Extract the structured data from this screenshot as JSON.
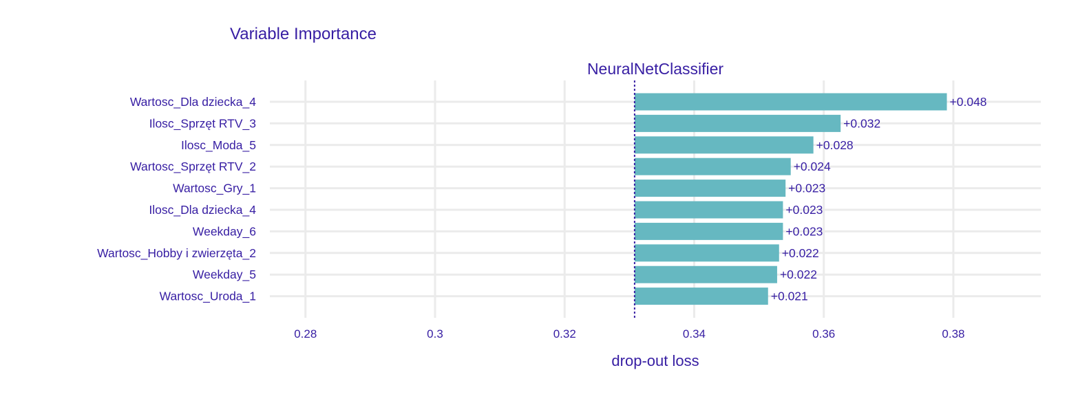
{
  "chart_data": {
    "type": "bar",
    "orientation": "horizontal",
    "title": "Variable Importance",
    "subtitle": "NeuralNetClassifier",
    "xlabel": "drop-out loss",
    "ylabel": "",
    "baseline": 0.3308,
    "xlim": [
      0.2745,
      0.3935
    ],
    "xticks": [
      0.28,
      0.3,
      0.32,
      0.34,
      0.36,
      0.38
    ],
    "xtick_labels": [
      "0.28",
      "0.3",
      "0.32",
      "0.34",
      "0.36",
      "0.38"
    ],
    "categories": [
      "Wartosc_Dla dziecka_4",
      "Ilosc_Sprzęt RTV_3",
      "Ilosc_Moda_5",
      "Wartosc_Sprzęt RTV_2",
      "Wartosc_Gry_1",
      "Ilosc_Dla dziecka_4",
      "Weekday_6",
      "Wartosc_Hobby i zwierzęta_2",
      "Weekday_5",
      "Wartosc_Uroda_1"
    ],
    "values": [
      0.379,
      0.3626,
      0.3584,
      0.3549,
      0.3541,
      0.3537,
      0.3537,
      0.3531,
      0.3528,
      0.3514
    ],
    "value_labels": [
      "+0.048",
      "+0.032",
      "+0.028",
      "+0.024",
      "+0.023",
      "+0.023",
      "+0.023",
      "+0.022",
      "+0.022",
      "+0.021"
    ],
    "bar_color": "#66b8c1",
    "text_color": "#371ea3",
    "baseline_color": "#371ea3",
    "grid": true,
    "legend": "none"
  }
}
